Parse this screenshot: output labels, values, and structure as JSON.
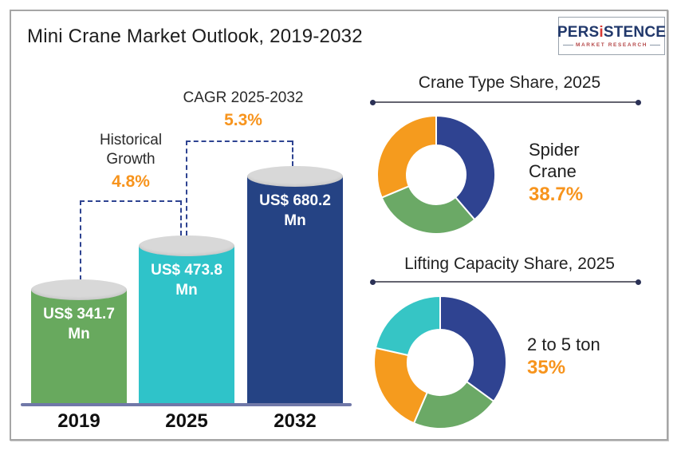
{
  "header": {
    "title": "Mini Crane Market Outlook, 2019-2032",
    "logo": {
      "part1": "PERS",
      "part2": "i",
      "part3": "STENCE",
      "tagline": "MARKET RESEARCH"
    }
  },
  "colors": {
    "accent_orange": "#F7941D",
    "bar_green": "#68A95E",
    "bar_teal": "#2FC3C9",
    "bar_navy": "#254384",
    "cylinder_top": "#D8D8D8",
    "axis": "#7078A8",
    "dashed_bracket": "#2E4391",
    "card_border": "#a6a6a6"
  },
  "chart_data": [
    {
      "type": "bar",
      "title": "Mini Crane Market Outlook, 2019-2032",
      "categories": [
        "2019",
        "2025",
        "2032"
      ],
      "values": [
        341.7,
        473.8,
        680.2
      ],
      "unit": "US$ Mn",
      "bar_labels": [
        [
          "US$ 341.7",
          "Mn"
        ],
        [
          "US$ 473.8",
          "Mn"
        ],
        [
          "US$ 680.2",
          "Mn"
        ]
      ],
      "bar_colors": [
        "#68A95E",
        "#2FC3C9",
        "#254384"
      ],
      "annotations": [
        {
          "lines": [
            "Historical",
            "Growth"
          ],
          "value": "4.8%",
          "span": [
            "2019",
            "2025"
          ]
        },
        {
          "lines": [
            "CAGR 2025-2032"
          ],
          "value": "5.3%",
          "span": [
            "2025",
            "2032"
          ]
        }
      ],
      "xlabel": "",
      "ylabel": "",
      "grid": false,
      "legend": false
    },
    {
      "type": "pie",
      "donut": true,
      "title": "Crane Type Share, 2025",
      "labels": [
        "Spider Crane",
        "",
        ""
      ],
      "values": [
        38.7,
        30,
        31.3
      ],
      "colors": [
        "#2F4391",
        "#6BA966",
        "#F59B1E"
      ],
      "callout": {
        "lines": [
          "Spider",
          "Crane"
        ],
        "value": "38.7%"
      },
      "legend": false
    },
    {
      "type": "pie",
      "donut": true,
      "title": "Lifting Capacity Share, 2025",
      "labels": [
        "2 to 5 ton",
        "",
        "",
        ""
      ],
      "values": [
        35,
        21.5,
        22,
        21.5
      ],
      "colors": [
        "#2F4391",
        "#6BA966",
        "#F59B1E",
        "#36C5C5"
      ],
      "callout": {
        "lines": [
          "2 to 5 ton"
        ],
        "value": "35%"
      },
      "legend": false
    }
  ]
}
